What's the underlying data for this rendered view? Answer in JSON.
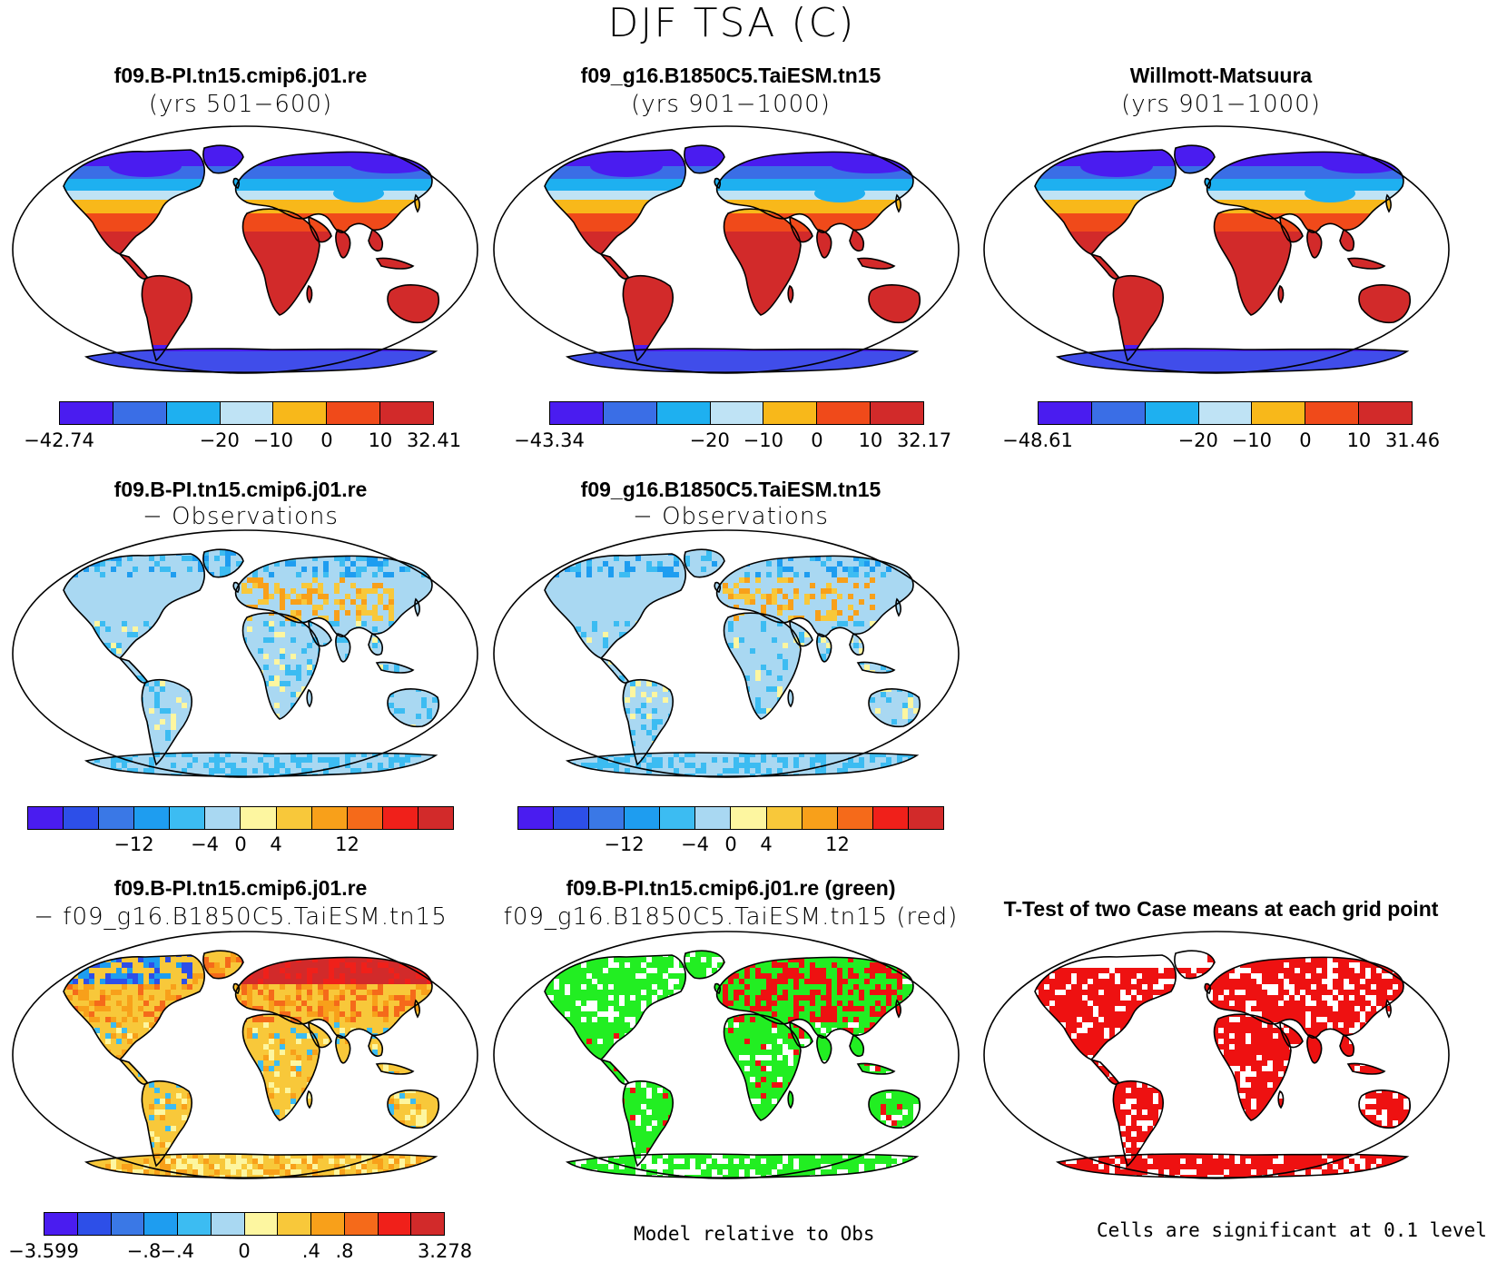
{
  "title": "DJF TSA (C)",
  "colors": {
    "abs": [
      "#4a1cf0",
      "#3a6ee6",
      "#1eb0f0",
      "#bfe3f5",
      "#f8b81a",
      "#f04a1a",
      "#d22a2a"
    ],
    "diff": [
      "#4a1cf0",
      "#2d4fe8",
      "#3a78e6",
      "#1e9df0",
      "#3cbcf2",
      "#a9d8f2",
      "#fdf6a0",
      "#f8c83a",
      "#f8a01a",
      "#f56a1a",
      "#f0201a",
      "#d22a2a"
    ],
    "ocean": "#ffffff",
    "green": "#22ee22",
    "red": "#ee1111"
  },
  "panels": [
    {
      "id": "p1",
      "title": "f09.B-PI.tn15.cmip6.j01.re",
      "subtitle": "(yrs 501−600)",
      "style": "abs",
      "colorbar": {
        "ticks": [
          "−42.74",
          "−20",
          "−10",
          "0",
          "10",
          "32.41"
        ]
      }
    },
    {
      "id": "p2",
      "title": "f09_g16.B1850C5.TaiESM.tn15",
      "subtitle": "(yrs 901−1000)",
      "style": "abs",
      "colorbar": {
        "ticks": [
          "−43.34",
          "−20",
          "−10",
          "0",
          "10",
          "32.17"
        ]
      }
    },
    {
      "id": "p3",
      "title": "Willmott-Matsuura",
      "subtitle": "(yrs 901−1000)",
      "style": "abs",
      "colorbar": {
        "ticks": [
          "−48.61",
          "−20",
          "−10",
          "0",
          "10",
          "31.46"
        ]
      }
    },
    {
      "id": "p4",
      "title": "f09.B-PI.tn15.cmip6.j01.re",
      "subtitle": "− Observations",
      "style": "bias",
      "colorbar": {
        "ticks": [
          "−12",
          "−4",
          "0",
          "4",
          "12"
        ]
      }
    },
    {
      "id": "p5",
      "title": "f09_g16.B1850C5.TaiESM.tn15",
      "subtitle": "− Observations",
      "style": "bias",
      "colorbar": {
        "ticks": [
          "−12",
          "−4",
          "0",
          "4",
          "12"
        ]
      }
    },
    {
      "id": "p6",
      "title": "f09.B-PI.tn15.cmip6.j01.re",
      "subtitle": "− f09_g16.B1850C5.TaiESM.tn15",
      "style": "diff",
      "colorbar": {
        "ticks": [
          "−3.599",
          "−.8",
          "−.4",
          "0",
          ".4",
          ".8",
          "3.278"
        ]
      }
    },
    {
      "id": "p7",
      "title": "f09.B-PI.tn15.cmip6.j01.re (green)",
      "subtitle": "f09_g16.B1850C5.TaiESM.tn15 (red)",
      "style": "greenred",
      "footnote": "Model relative to Obs"
    },
    {
      "id": "p8",
      "title": "T-Test of two Case means at each grid point",
      "style": "ttest",
      "footnote": "Cells are significant at 0.1 level"
    }
  ]
}
